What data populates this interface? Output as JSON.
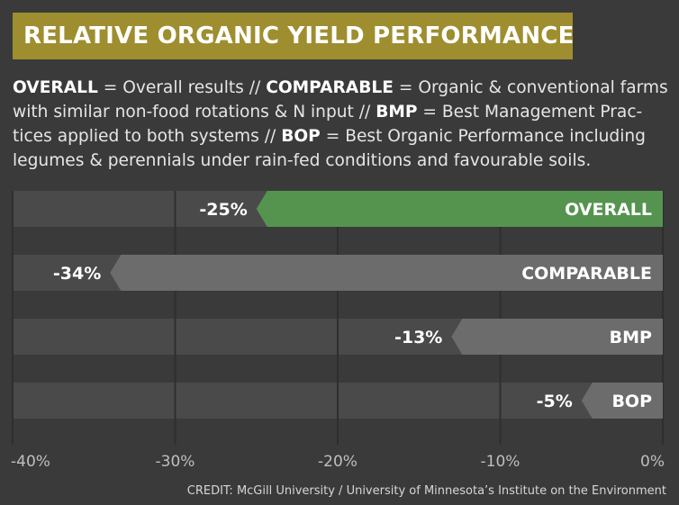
{
  "title": "RELATIVE ORGANIC YIELD PERFORMANCE",
  "description": [
    {
      "term": "OVERALL",
      "text": " = Overall results // "
    },
    {
      "term": "COMPARABLE",
      "text": " = Organic & conventional farms with similar non-food rotations & N input // "
    },
    {
      "term": "BMP",
      "text": " = Best Management Prac-tices applied to both systems // "
    },
    {
      "term": "BOP",
      "text": " = Best Organic Performance including legumes & perennials under rain-fed conditions and favourable soils."
    }
  ],
  "credit": "CREDIT: McGill University / University of Minnesota’s Institute on the Environment",
  "colors": {
    "background": "#3a3a3a",
    "title_box": "#9e8e2f",
    "row_track": "#4a4a4a",
    "bar_highlight": "#55944f",
    "bar_default": "#6c6c6c",
    "text": "#ffffff",
    "tick_text": "#bfbfbf"
  },
  "chart_data": {
    "type": "bar",
    "orientation": "horizontal",
    "categories": [
      "OVERALL",
      "COMPARABLE",
      "BMP",
      "BOP"
    ],
    "values": [
      -25,
      -34,
      -13,
      -5
    ],
    "value_labels": [
      "-25%",
      "-34%",
      "-13%",
      "-5%"
    ],
    "highlight": "OVERALL",
    "xlim": [
      -40,
      0
    ],
    "xticks": [
      -40,
      -30,
      -20,
      -10,
      0
    ],
    "xtick_labels": [
      "-40%",
      "-30%",
      "-20%",
      "-10%",
      "0%"
    ],
    "grid": true
  }
}
